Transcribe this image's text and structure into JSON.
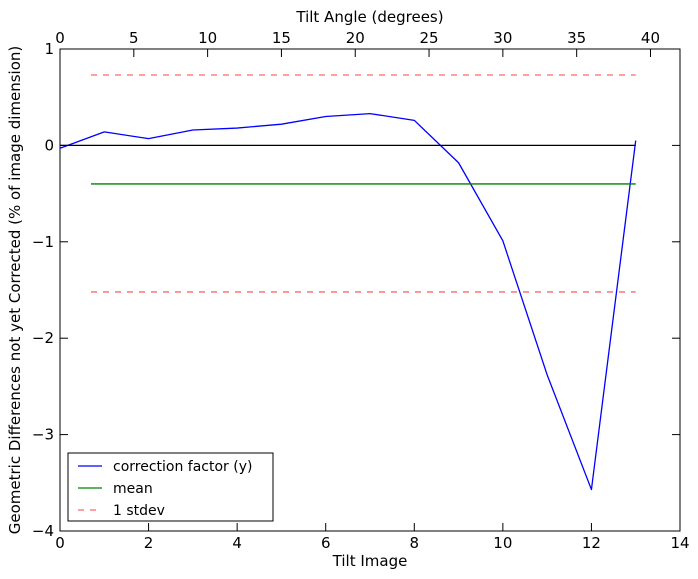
{
  "chart_data": {
    "type": "line",
    "xlabel": "Tilt Image",
    "ylabel": "Geometric Differences not yet Corrected (% of image dimension)",
    "x2label": "Tilt Angle (degrees)",
    "xlim": [
      0,
      14
    ],
    "ylim": [
      -4,
      1
    ],
    "x2lim": [
      0,
      42
    ],
    "x_ticks": [
      "0",
      "2",
      "4",
      "6",
      "8",
      "10",
      "12",
      "14"
    ],
    "y_ticks": [
      "1",
      "0",
      "−1",
      "−2",
      "−3",
      "−4"
    ],
    "x2_ticks": [
      "0",
      "5",
      "10",
      "15",
      "20",
      "25",
      "30",
      "35",
      "40"
    ],
    "grid": false,
    "legend_position": "lower-left",
    "series": [
      {
        "name": "correction factor (y)",
        "color": "#0000ff",
        "style": "solid",
        "x": [
          0,
          1,
          2,
          3,
          4,
          5,
          6,
          7,
          8,
          9,
          10,
          11,
          12,
          13
        ],
        "y": [
          -0.03,
          0.14,
          0.07,
          0.16,
          0.18,
          0.22,
          0.3,
          0.33,
          0.26,
          -0.18,
          -0.99,
          -2.38,
          -3.57,
          0.05
        ]
      },
      {
        "name": "mean",
        "color": "#008000",
        "style": "solid",
        "x": [
          0.7,
          13
        ],
        "y": [
          -0.4,
          -0.4
        ]
      },
      {
        "name": "1 stdev",
        "color": "#ff0000",
        "style": "dashed",
        "x": [
          0.7,
          13
        ],
        "y": [
          0.73,
          0.73
        ]
      },
      {
        "color": "#ff0000",
        "style": "dashed",
        "x": [
          0.7,
          13
        ],
        "y": [
          -1.52,
          -1.52
        ]
      },
      {
        "color": "#000000",
        "style": "solid",
        "x": [
          0,
          13
        ],
        "y": [
          0,
          0
        ]
      }
    ]
  }
}
